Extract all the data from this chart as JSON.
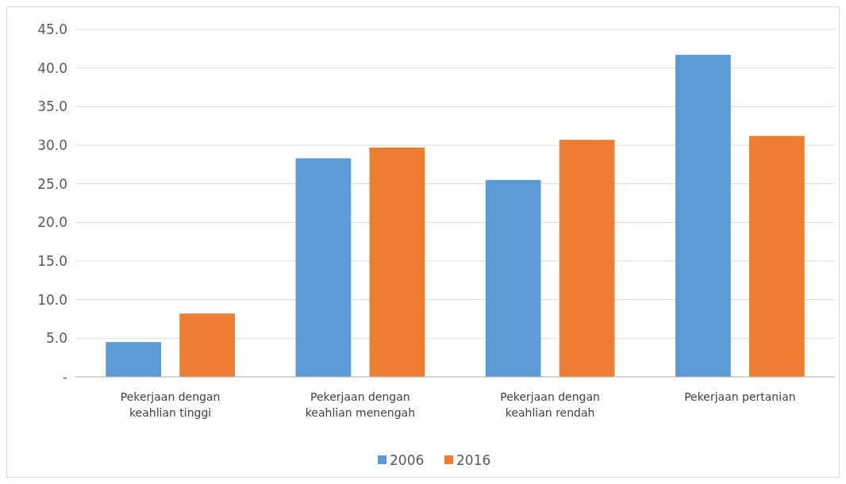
{
  "chart_data": {
    "type": "bar",
    "categories": [
      "Pekerjaan dengan keahlian tinggi",
      "Pekerjaan dengan keahlian menengah",
      "Pekerjaan dengan keahlian rendah",
      "Pekerjaan pertanian"
    ],
    "series": [
      {
        "name": "2006",
        "color": "#5b9bd5",
        "values": [
          4.5,
          28.3,
          25.5,
          41.7
        ]
      },
      {
        "name": "2016",
        "color": "#ed7d31",
        "values": [
          8.2,
          29.7,
          30.7,
          31.2
        ]
      }
    ],
    "ylim": [
      0,
      45
    ],
    "yticks": [
      {
        "value": 0,
        "label": "-"
      },
      {
        "value": 5,
        "label": "5.0"
      },
      {
        "value": 10,
        "label": "10.0"
      },
      {
        "value": 15,
        "label": "15.0"
      },
      {
        "value": 20,
        "label": "20.0"
      },
      {
        "value": 25,
        "label": "25.0"
      },
      {
        "value": 30,
        "label": "30.0"
      },
      {
        "value": 35,
        "label": "35.0"
      },
      {
        "value": 40,
        "label": "40.0"
      },
      {
        "value": 45,
        "label": "45.0"
      }
    ],
    "grid": "y",
    "legend": "bottom"
  }
}
